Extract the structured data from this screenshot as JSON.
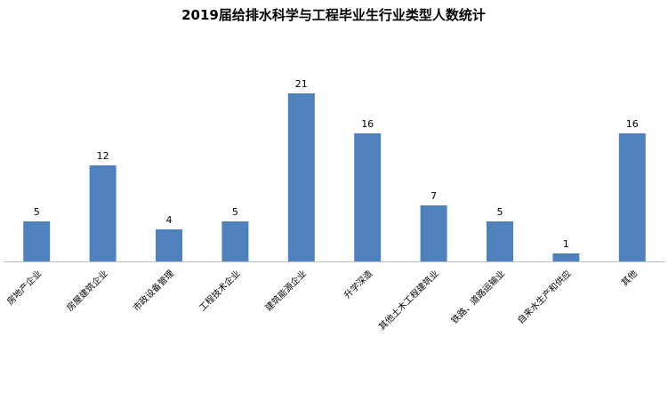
{
  "chart_data": {
    "type": "bar",
    "title": "2019届给排水科学与工程毕业生行业类型人数统计",
    "xlabel": "",
    "ylabel": "",
    "categories": [
      "房地产企业",
      "房屋建筑企业",
      "市政设备管理",
      "工程技术企业",
      "建筑能源企业",
      "升学深造",
      "其他土木工程建筑业",
      "铁路、道路运输业",
      "自来水生产和供应",
      "其他"
    ],
    "values": [
      5,
      12,
      4,
      5,
      21,
      16,
      7,
      5,
      1,
      16
    ],
    "ylim": [
      0,
      21
    ],
    "grid": false,
    "legend": "none",
    "data_labels": true,
    "bar_color": "#4f81bd",
    "axis_color": "#bfbfbf"
  }
}
